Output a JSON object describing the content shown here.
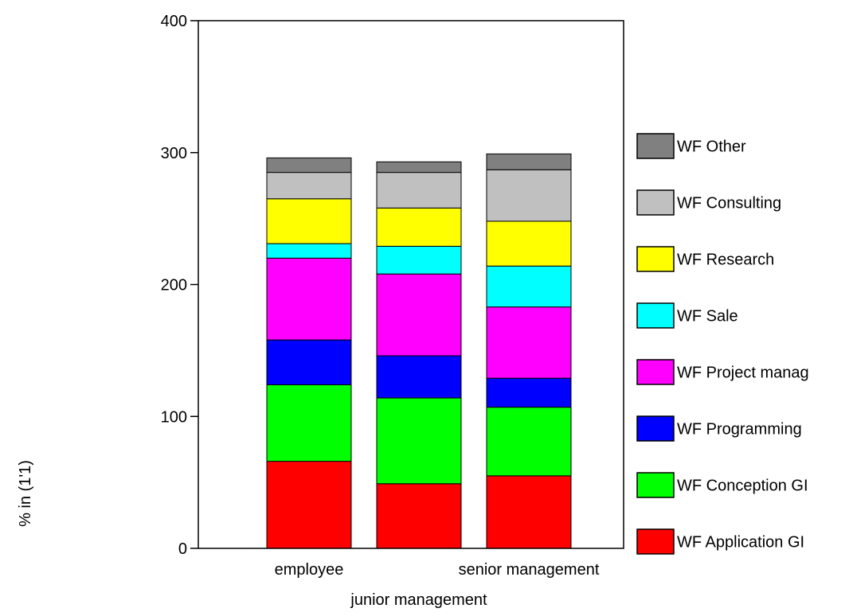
{
  "chart_data": {
    "type": "bar",
    "stacked": true,
    "title": "",
    "xlabel": "",
    "ylabel": "% in (1'1)",
    "ylim": [
      0,
      400
    ],
    "y_ticks": [
      "0",
      "100",
      "200",
      "300",
      "400"
    ],
    "categories": [
      "employee",
      "junior management",
      "senior management"
    ],
    "series": [
      {
        "name": "WF Application GI",
        "color": "#ff0000",
        "values": [
          66,
          49,
          55
        ]
      },
      {
        "name": "WF Conception GI",
        "color": "#00ff00",
        "values": [
          58,
          65,
          52
        ]
      },
      {
        "name": "WF Programming",
        "color": "#0000ff",
        "values": [
          34,
          32,
          22
        ]
      },
      {
        "name": "WF Project manag",
        "color": "#ff00ff",
        "values": [
          62,
          62,
          54
        ]
      },
      {
        "name": "WF Sale",
        "color": "#00ffff",
        "values": [
          11,
          21,
          31
        ]
      },
      {
        "name": "WF Research",
        "color": "#ffff00",
        "values": [
          34,
          29,
          34
        ]
      },
      {
        "name": "WF Consulting",
        "color": "#c0c0c0",
        "values": [
          20,
          27,
          39
        ]
      },
      {
        "name": "WF Other",
        "color": "#808080",
        "values": [
          11,
          8,
          12
        ]
      }
    ],
    "legend": "right",
    "grid": false
  }
}
